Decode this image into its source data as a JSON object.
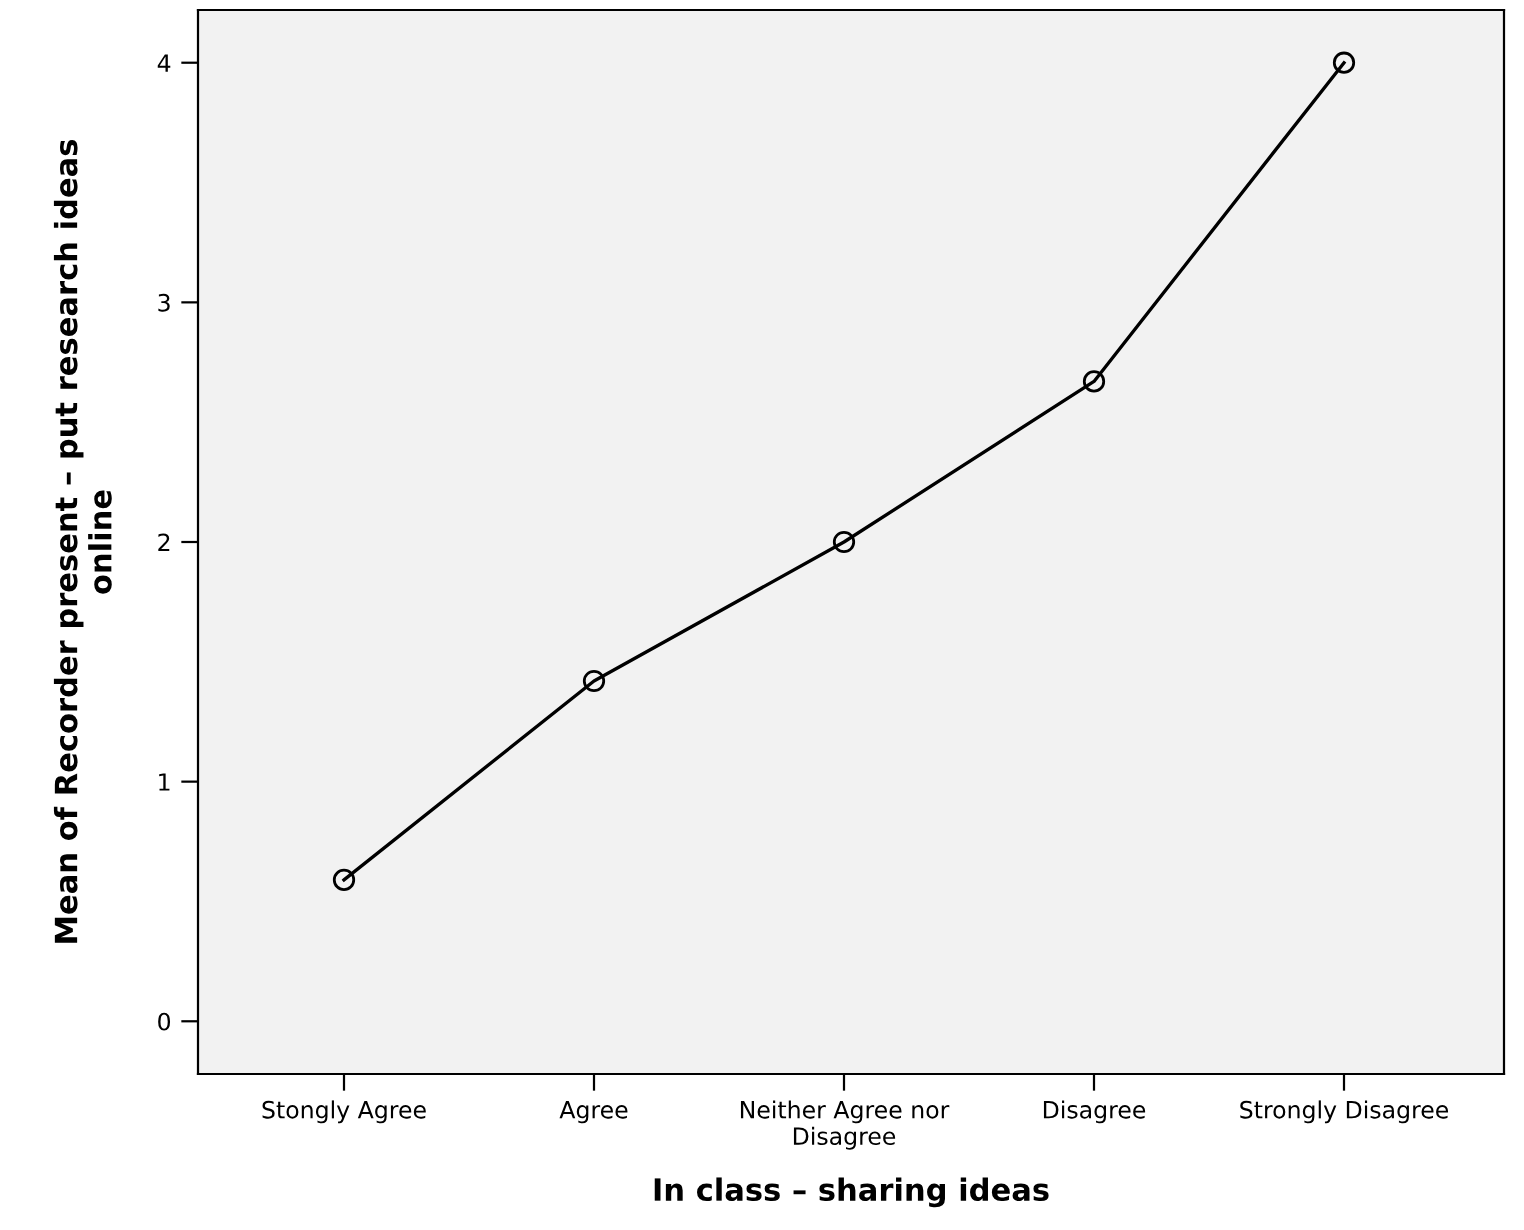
{
  "chart_data": {
    "type": "line",
    "xlabel": "In class – sharing ideas",
    "ylabel": "Mean of Recorder present – put research ideas\nonline",
    "categories": [
      "Stongly Agree",
      "Agree",
      "Neither Agree nor\nDisagree",
      "Disagree",
      "Strongly Disagree"
    ],
    "series": [
      {
        "color": "#000000",
        "values": [
          0.59,
          1.42,
          2.0,
          2.67,
          4.0
        ]
      }
    ],
    "ylim": [
      -0.22,
      4.22
    ],
    "yticks": [
      0,
      1,
      2,
      3,
      4
    ],
    "grid": false,
    "legend": false,
    "marker": "circle",
    "line_style": "solid"
  }
}
